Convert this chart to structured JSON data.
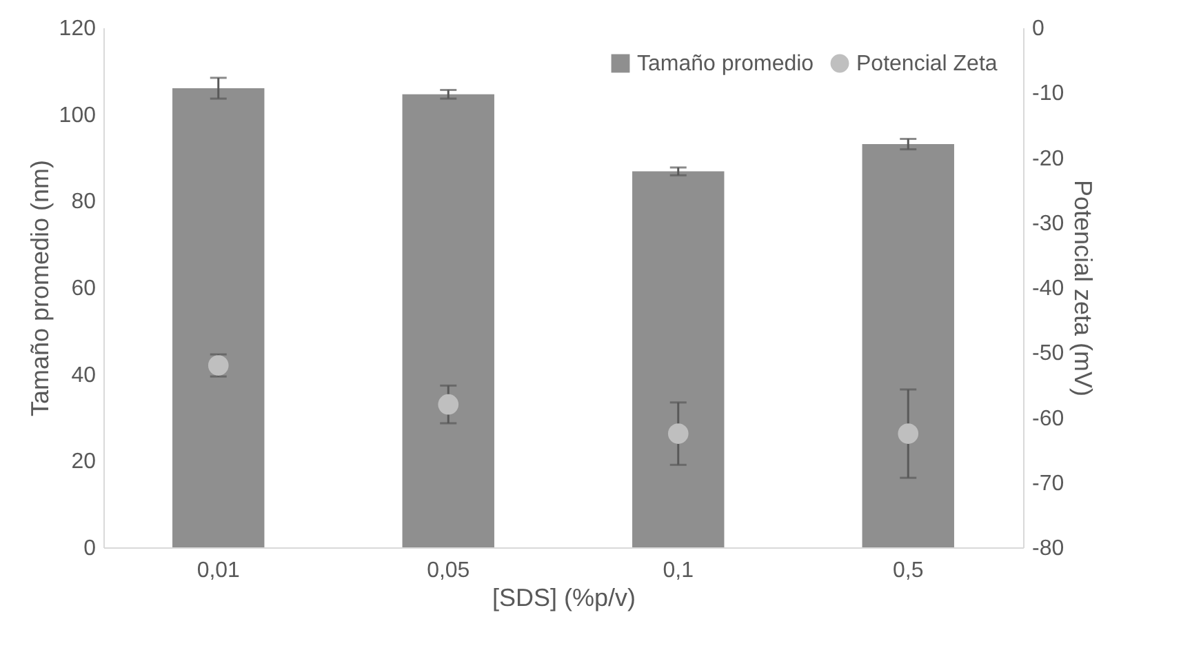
{
  "chart_data": {
    "type": "bar",
    "xlabel": "[SDS] (%p/v)",
    "ylabel": "Tamaño promedio (nm)",
    "y2label": "Potencial zeta (mV)",
    "categories": [
      "0,01",
      "0,05",
      "0,1",
      "0,5"
    ],
    "series": [
      {
        "name": "Tamaño promedio",
        "type": "bar",
        "color": "#8f8f8f",
        "values": [
          106.0,
          104.6,
          86.8,
          93.1
        ],
        "errors": [
          2.4,
          1.0,
          0.9,
          1.2
        ]
      },
      {
        "name": "Potencial Zeta",
        "type": "scatter",
        "axis": "y2",
        "color": "#bfbfbf",
        "marker": "circle",
        "values": [
          -52.0,
          -58.0,
          -62.5,
          -62.5
        ],
        "errors": [
          1.7,
          2.9,
          4.8,
          6.8
        ]
      }
    ],
    "ylim": [
      0,
      120
    ],
    "yticks": [
      0,
      20,
      40,
      60,
      80,
      100,
      120
    ],
    "y2lim": [
      -80,
      0
    ],
    "y2ticks": [
      -80,
      -70,
      -60,
      -50,
      -40,
      -30,
      -20,
      -10,
      0
    ],
    "legend": "top right",
    "grid": false
  }
}
